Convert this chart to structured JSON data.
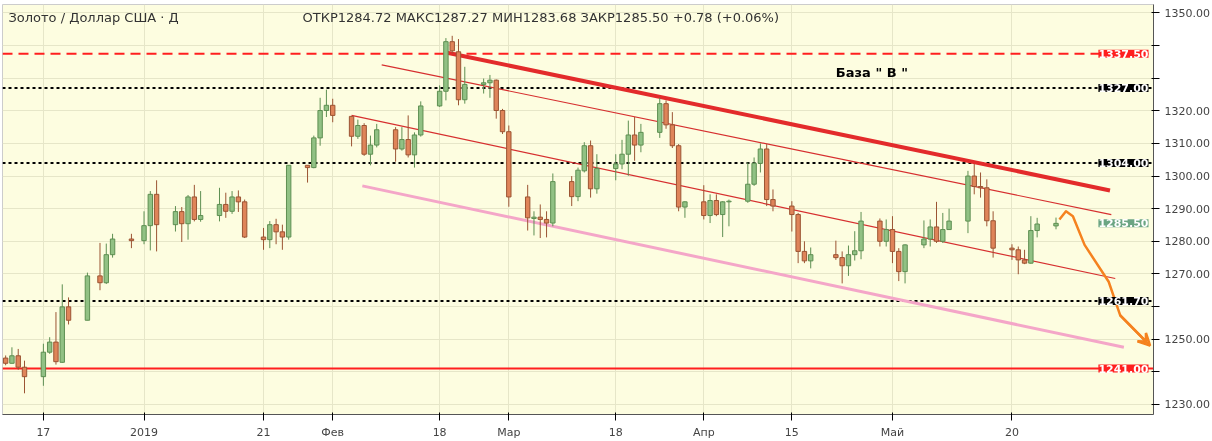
{
  "chart_data": {
    "type": "candlestick",
    "title": "Золото / Доллар США · Д",
    "subtitle": "ОТКР1284.72   МАКС1287.27   МИН1283.68   ЗАКР1285.50   +0.78 (+0.06%)",
    "x": [
      "2018-12-11",
      "2018-12-12",
      "2018-12-13",
      "2018-12-14",
      "2018-12-17",
      "2018-12-18",
      "2018-12-19",
      "2018-12-20",
      "2018-12-21",
      "2018-12-24",
      "2018-12-26",
      "2018-12-27",
      "2018-12-28",
      "2018-12-31",
      "2019-01-02",
      "2019-01-03",
      "2019-01-04",
      "2019-01-07",
      "2019-01-08",
      "2019-01-09",
      "2019-01-10",
      "2019-01-11",
      "2019-01-14",
      "2019-01-15",
      "2019-01-16",
      "2019-01-17",
      "2019-01-18",
      "2019-01-21",
      "2019-01-22",
      "2019-01-23",
      "2019-01-24",
      "2019-01-25",
      "2019-01-28",
      "2019-01-29",
      "2019-01-30",
      "2019-01-31",
      "2019-02-01",
      "2019-02-04",
      "2019-02-05",
      "2019-02-06",
      "2019-02-07",
      "2019-02-08",
      "2019-02-11",
      "2019-02-12",
      "2019-02-13",
      "2019-02-14",
      "2019-02-15",
      "2019-02-18",
      "2019-02-19",
      "2019-02-20",
      "2019-02-21",
      "2019-02-22",
      "2019-02-25",
      "2019-02-26",
      "2019-02-27",
      "2019-02-28",
      "2019-03-01",
      "2019-03-04",
      "2019-03-05",
      "2019-03-06",
      "2019-03-07",
      "2019-03-08",
      "2019-03-11",
      "2019-03-12",
      "2019-03-13",
      "2019-03-14",
      "2019-03-15",
      "2019-03-18",
      "2019-03-19",
      "2019-03-20",
      "2019-03-21",
      "2019-03-22",
      "2019-03-25",
      "2019-03-26",
      "2019-03-27",
      "2019-03-28",
      "2019-03-29",
      "2019-04-01",
      "2019-04-02",
      "2019-04-03",
      "2019-04-04",
      "2019-04-05",
      "2019-04-08",
      "2019-04-09",
      "2019-04-10",
      "2019-04-11",
      "2019-04-12",
      "2019-04-15",
      "2019-04-16",
      "2019-04-17",
      "2019-04-18",
      "2019-04-22",
      "2019-04-23",
      "2019-04-24",
      "2019-04-25",
      "2019-04-26",
      "2019-04-29",
      "2019-04-30",
      "2019-05-01",
      "2019-05-02",
      "2019-05-03",
      "2019-05-06",
      "2019-05-07",
      "2019-05-08",
      "2019-05-09",
      "2019-05-10",
      "2019-05-13",
      "2019-05-14",
      "2019-05-15",
      "2019-05-16",
      "2019-05-17",
      "2019-05-20",
      "2019-05-21",
      "2019-05-22",
      "2019-05-23",
      "2019-05-24",
      "2019-05-27"
    ],
    "ohlc": [
      [
        1244.2,
        1245.0,
        1242.0,
        1242.6
      ],
      [
        1242.6,
        1247.5,
        1242.5,
        1244.9
      ],
      [
        1244.9,
        1247.0,
        1240.6,
        1241.4
      ],
      [
        1241.4,
        1243.4,
        1233.4,
        1238.5
      ],
      [
        1238.5,
        1248.6,
        1235.7,
        1246.0
      ],
      [
        1246.0,
        1250.6,
        1245.5,
        1249.1
      ],
      [
        1249.1,
        1258.3,
        1242.2,
        1243.1
      ],
      [
        1242.9,
        1266.8,
        1242.7,
        1259.9
      ],
      [
        1259.9,
        1262.8,
        1254.5,
        1255.8
      ],
      [
        1255.8,
        1270.4,
        1255.8,
        1269.4
      ],
      [
        1269.4,
        1279.5,
        1265.0,
        1267.3
      ],
      [
        1267.3,
        1279.3,
        1266.9,
        1275.9
      ],
      [
        1275.9,
        1282.3,
        1275.0,
        1280.7
      ],
      [
        1280.7,
        1282.3,
        1277.9,
        1280.2
      ],
      [
        1280.2,
        1289.2,
        1279.1,
        1284.8
      ],
      [
        1284.8,
        1295.4,
        1277.2,
        1294.4
      ],
      [
        1294.4,
        1298.7,
        1276.9,
        1285.1
      ],
      [
        1285.1,
        1290.8,
        1283.0,
        1289.1
      ],
      [
        1289.1,
        1290.5,
        1279.8,
        1285.4
      ],
      [
        1285.4,
        1294.2,
        1280.5,
        1293.6
      ],
      [
        1293.6,
        1297.3,
        1286.1,
        1286.7
      ],
      [
        1286.7,
        1295.4,
        1286.0,
        1287.9
      ],
      [
        1287.9,
        1296.4,
        1286.1,
        1291.3
      ],
      [
        1291.3,
        1294.9,
        1287.2,
        1289.2
      ],
      [
        1289.2,
        1295.4,
        1288.4,
        1293.6
      ],
      [
        1293.6,
        1295.6,
        1289.0,
        1292.1
      ],
      [
        1292.1,
        1292.8,
        1281.0,
        1281.3
      ],
      [
        1281.3,
        1284.1,
        1277.4,
        1280.5
      ],
      [
        1280.5,
        1286.2,
        1277.9,
        1285.1
      ],
      [
        1285.1,
        1286.9,
        1279.1,
        1282.9
      ],
      [
        1282.9,
        1285.1,
        1277.4,
        1281.3
      ],
      [
        1281.3,
        1303.3,
        1280.5,
        1303.3
      ],
      [
        1303.3,
        1303.3,
        1298.0,
        1302.6
      ],
      [
        1302.6,
        1312.4,
        1302.4,
        1311.7
      ],
      [
        1311.7,
        1324.0,
        1309.3,
        1320.1
      ],
      [
        1320.1,
        1326.5,
        1318.1,
        1321.7
      ],
      [
        1321.7,
        1323.7,
        1316.5,
        1318.6
      ],
      [
        1318.3,
        1318.3,
        1309.1,
        1312.2
      ],
      [
        1312.2,
        1317.3,
        1311.4,
        1315.5
      ],
      [
        1315.5,
        1316.2,
        1306.2,
        1306.7
      ],
      [
        1306.7,
        1312.4,
        1303.3,
        1309.5
      ],
      [
        1309.5,
        1316.0,
        1308.8,
        1314.2
      ],
      [
        1314.2,
        1315.0,
        1304.4,
        1308.3
      ],
      [
        1308.3,
        1315.0,
        1307.8,
        1311.2
      ],
      [
        1311.2,
        1318.6,
        1305.7,
        1306.5
      ],
      [
        1306.5,
        1313.4,
        1302.6,
        1312.6
      ],
      [
        1312.6,
        1322.9,
        1312.1,
        1321.5
      ],
      [
        1321.5,
        1327.8,
        1321.2,
        1326.0
      ],
      [
        1326.0,
        1342.3,
        1323.2,
        1341.2
      ],
      [
        1341.2,
        1343.0,
        1337.6,
        1338.4
      ],
      [
        1338.1,
        1342.0,
        1321.7,
        1323.4
      ],
      [
        1323.4,
        1333.5,
        1322.2,
        1328.1
      ],
      [
        1328.1,
        1329.9,
        1325.3,
        1328.6
      ],
      [
        1328.6,
        1331.0,
        1324.0,
        1329.4
      ],
      [
        1329.4,
        1329.6,
        1317.6,
        1320.1
      ],
      [
        1320.1,
        1320.6,
        1312.9,
        1313.6
      ],
      [
        1313.6,
        1315.5,
        1290.6,
        1293.6
      ],
      [
        1293.6,
        1297.3,
        1283.3,
        1287.2
      ],
      [
        1287.0,
        1289.2,
        1281.8,
        1287.4
      ],
      [
        1287.4,
        1291.3,
        1281.0,
        1286.7
      ],
      [
        1286.7,
        1289.2,
        1281.2,
        1285.6
      ],
      [
        1285.6,
        1300.8,
        1284.6,
        1298.3
      ],
      [
        1298.3,
        1300.0,
        1290.8,
        1293.7
      ],
      [
        1293.7,
        1302.6,
        1292.3,
        1301.8
      ],
      [
        1301.6,
        1310.4,
        1301.1,
        1309.3
      ],
      [
        1309.3,
        1310.9,
        1293.4,
        1296.1
      ],
      [
        1296.1,
        1306.7,
        1294.6,
        1302.3
      ],
      [
        1302.3,
        1306.7,
        1298.7,
        1303.7
      ],
      [
        1303.7,
        1311.1,
        1302.1,
        1306.7
      ],
      [
        1306.7,
        1317.0,
        1300.1,
        1312.6
      ],
      [
        1312.6,
        1318.1,
        1304.7,
        1309.5
      ],
      [
        1309.5,
        1316.0,
        1307.3,
        1313.4
      ],
      [
        1313.4,
        1324.0,
        1311.7,
        1322.2
      ],
      [
        1322.2,
        1323.2,
        1314.5,
        1315.7
      ],
      [
        1315.7,
        1319.6,
        1308.6,
        1309.3
      ],
      [
        1309.3,
        1309.8,
        1289.2,
        1290.5
      ],
      [
        1290.5,
        1292.3,
        1287.2,
        1292.1
      ],
      [
        1292.1,
        1297.2,
        1286.7,
        1287.9
      ],
      [
        1287.9,
        1294.4,
        1285.6,
        1292.5
      ],
      [
        1292.5,
        1294.4,
        1287.7,
        1288.2
      ],
      [
        1288.2,
        1292.3,
        1281.3,
        1292.1
      ],
      [
        1292.1,
        1292.8,
        1284.6,
        1292.3
      ],
      [
        1292.3,
        1304.2,
        1291.8,
        1297.5
      ],
      [
        1297.5,
        1305.7,
        1297.0,
        1303.9
      ],
      [
        1303.9,
        1310.0,
        1301.1,
        1308.3
      ],
      [
        1308.3,
        1309.8,
        1290.8,
        1292.8
      ],
      [
        1292.8,
        1295.9,
        1289.2,
        1290.8
      ],
      [
        1290.8,
        1292.3,
        1283.0,
        1288.2
      ],
      [
        1288.2,
        1288.7,
        1273.3,
        1276.9
      ],
      [
        1276.9,
        1280.0,
        1273.3,
        1274.0
      ],
      [
        1274.0,
        1278.1,
        1271.7,
        1275.9
      ],
      [
        1275.9,
        1280.2,
        1274.3,
        1275.0
      ],
      [
        1275.0,
        1276.9,
        1267.1,
        1272.5
      ],
      [
        1272.5,
        1278.7,
        1269.4,
        1275.9
      ],
      [
        1275.9,
        1283.1,
        1274.1,
        1277.1
      ],
      [
        1277.1,
        1289.0,
        1274.5,
        1286.2
      ],
      [
        1286.2,
        1287.0,
        1278.4,
        1280.0
      ],
      [
        1280.0,
        1286.7,
        1278.4,
        1283.6
      ],
      [
        1283.6,
        1287.7,
        1273.3,
        1276.9
      ],
      [
        1276.9,
        1277.9,
        1267.8,
        1270.7
      ],
      [
        1270.7,
        1279.1,
        1267.1,
        1278.9
      ],
      [
        1278.9,
        1286.4,
        1277.9,
        1280.7
      ],
      [
        1280.7,
        1286.7,
        1278.4,
        1284.4
      ],
      [
        1284.4,
        1292.1,
        1279.5,
        1280.0
      ],
      [
        1280.0,
        1288.7,
        1279.5,
        1283.6
      ],
      [
        1283.6,
        1290.0,
        1283.6,
        1286.2
      ],
      [
        1286.2,
        1301.6,
        1282.5,
        1300.0
      ],
      [
        1300.0,
        1303.7,
        1294.4,
        1296.8
      ],
      [
        1296.8,
        1301.1,
        1293.4,
        1296.4
      ],
      [
        1296.4,
        1299.0,
        1284.6,
        1286.3
      ],
      [
        1286.3,
        1289.2,
        1275.0,
        1277.9
      ],
      [
        1277.9,
        1279.1,
        1274.3,
        1277.4
      ],
      [
        1277.4,
        1278.4,
        1269.9,
        1274.3
      ],
      [
        1274.3,
        1277.4,
        1273.0,
        1273.3
      ],
      [
        1273.3,
        1287.7,
        1273.1,
        1283.3
      ],
      [
        1283.3,
        1287.2,
        1281.2,
        1285.3
      ],
      [
        1284.72,
        1287.27,
        1283.68,
        1285.5
      ]
    ],
    "series": [
      {
        "type": "line",
        "color": "#e32b2b",
        "x": [
          "2019-02-19T05:00",
          "2019-06-04T14:00"
        ],
        "values": [
          1337.8,
          1295.6
        ]
      },
      {
        "type": "line",
        "color": "#d62f2f",
        "x": [
          "2019-02-08T19:00",
          "2019-06-04T19:00"
        ],
        "values": [
          1334.1,
          1288.2
        ]
      },
      {
        "type": "line",
        "color": "#d62f2f",
        "x": [
          "2019-02-04",
          "2019-06-05T10:00"
        ],
        "values": [
          1318.6,
          1268.6
        ]
      },
      {
        "type": "line",
        "color": "#f4a6c8",
        "x": [
          "2019-02-05T17:00",
          "2019-06-06T19:00"
        ],
        "values": [
          1297.0,
          1247.5
        ]
      },
      {
        "type": "line",
        "color": "#f5821f",
        "x": [
          "2019-05-27T13:00",
          "2019-05-28T14:00",
          "2019-05-29T16:30",
          "2019-05-31T13:00",
          "2019-06-04T09:00",
          "2019-06-06T05:00",
          "2019-06-10T23:00"
        ],
        "values": [
          1286.7,
          1289.2,
          1287.7,
          1278.9,
          1267.6,
          1257.3,
          1248.0
        ]
      }
    ],
    "xlim": [
      "2018-12-10T12:00",
      "2019-06-11T12:00"
    ],
    "xticks": [
      {
        "value": "2018-12-17",
        "label": "17"
      },
      {
        "value": "2019-01-02",
        "label": "2019"
      },
      {
        "value": "2019-01-21",
        "label": "21"
      },
      {
        "value": "2019-02-01",
        "label": "Фев"
      },
      {
        "value": "2019-02-18",
        "label": "18"
      },
      {
        "value": "2019-03-01",
        "label": "Мар"
      },
      {
        "value": "2019-03-18",
        "label": "18"
      },
      {
        "value": "2019-04-01",
        "label": "Апр"
      },
      {
        "value": "2019-04-15",
        "label": "15"
      },
      {
        "value": "2019-05-01",
        "label": "Май"
      },
      {
        "value": "2019-05-20",
        "label": "20"
      }
    ],
    "ylim": [
      1226.9,
      1352.6
    ],
    "yticks": [
      {
        "value": 1230,
        "label": "1230.00"
      },
      {
        "value": 1240,
        "label": null
      },
      {
        "value": 1250,
        "label": "1250.00"
      },
      {
        "value": 1260,
        "label": null
      },
      {
        "value": 1270,
        "label": "1270.00"
      },
      {
        "value": 1280,
        "label": "1280.00"
      },
      {
        "value": 1290,
        "label": "1290.00"
      },
      {
        "value": 1300,
        "label": "1300.00"
      },
      {
        "value": 1310,
        "label": "1310.00"
      },
      {
        "value": 1320,
        "label": "1320.00"
      },
      {
        "value": 1330,
        "label": null
      },
      {
        "value": 1340,
        "label": null
      },
      {
        "value": 1350,
        "label": "1350.00"
      }
    ],
    "ref_lines": [
      {
        "axis": "y",
        "value": 1337.5,
        "label": "1337.50",
        "color": "#ff1f1f",
        "line_style": "dashed"
      },
      {
        "axis": "y",
        "value": 1327,
        "label": "1327.00",
        "color": "#000000",
        "line_style": "dotted"
      },
      {
        "axis": "y",
        "value": 1304,
        "label": "1304.00",
        "color": "#000000",
        "line_style": "dotted"
      },
      {
        "axis": "y",
        "value": 1261.7,
        "label": "1261.70",
        "color": "#000000",
        "line_style": "dotted"
      },
      {
        "axis": "y",
        "value": 1241,
        "label": "1241.00",
        "color": "#ff1f1f",
        "line_style": "solid"
      }
    ],
    "annotations": [
      "1285.50",
      "База  \" В \""
    ],
    "grid": true
  }
}
